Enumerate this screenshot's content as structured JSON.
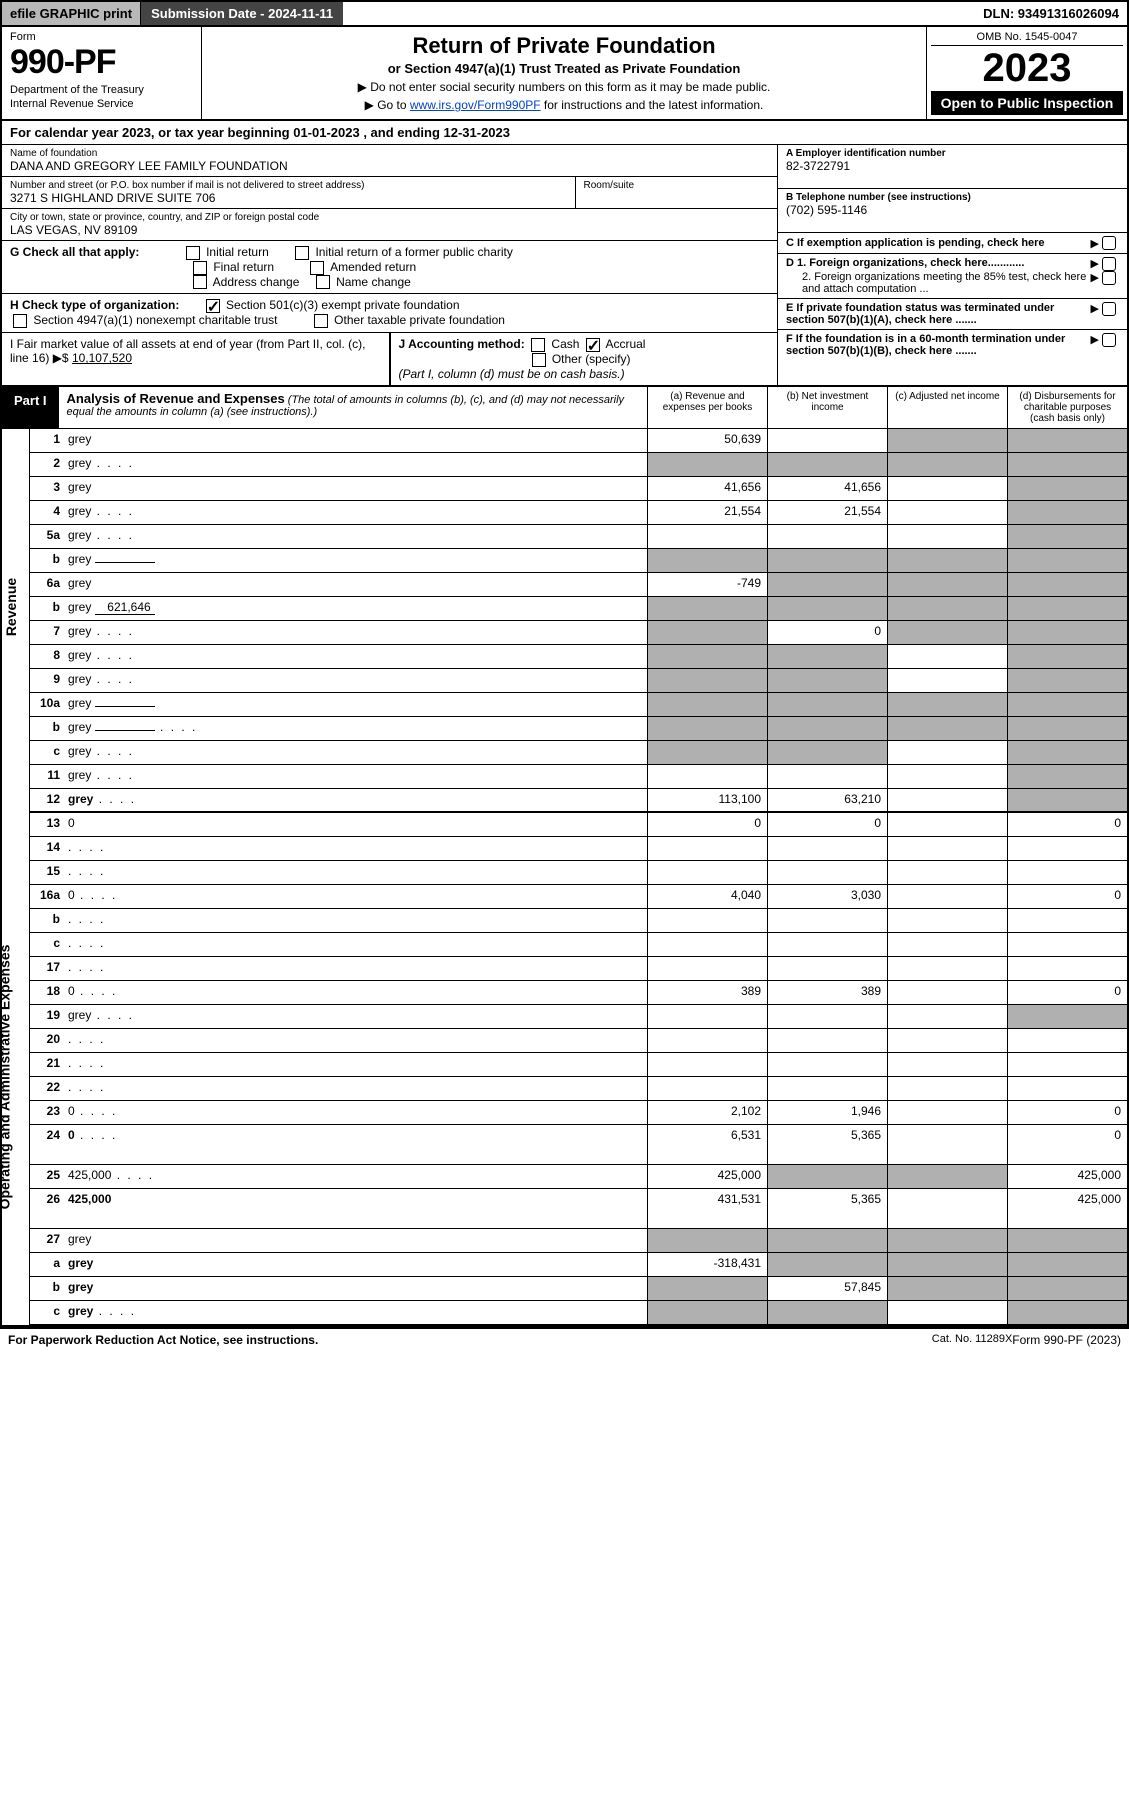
{
  "topbar": {
    "efile": "efile GRAPHIC print",
    "submission": "Submission Date - 2024-11-11",
    "dln": "DLN: 93491316026094"
  },
  "header": {
    "form_label": "Form",
    "form_number": "990-PF",
    "dept1": "Department of the Treasury",
    "dept2": "Internal Revenue Service",
    "title": "Return of Private Foundation",
    "subtitle": "or Section 4947(a)(1) Trust Treated as Private Foundation",
    "inst1": "▶ Do not enter social security numbers on this form as it may be made public.",
    "inst2_pre": "▶ Go to ",
    "inst2_link": "www.irs.gov/Form990PF",
    "inst2_post": " for instructions and the latest information.",
    "omb": "OMB No. 1545-0047",
    "year": "2023",
    "open": "Open to Public Inspection"
  },
  "cal_year": "For calendar year 2023, or tax year beginning 01-01-2023              , and ending 12-31-2023",
  "info": {
    "name_lbl": "Name of foundation",
    "name": "DANA AND GREGORY LEE FAMILY FOUNDATION",
    "addr_lbl": "Number and street (or P.O. box number if mail is not delivered to street address)",
    "addr": "3271 S HIGHLAND DRIVE SUITE 706",
    "room_lbl": "Room/suite",
    "city_lbl": "City or town, state or province, country, and ZIP or foreign postal code",
    "city": "LAS VEGAS, NV  89109",
    "ein_lbl": "A Employer identification number",
    "ein": "82-3722791",
    "phone_lbl": "B Telephone number (see instructions)",
    "phone": "(702) 595-1146",
    "c_lbl": "C If exemption application is pending, check here",
    "d1_lbl": "D 1. Foreign organizations, check here............",
    "d2_lbl": "2. Foreign organizations meeting the 85% test, check here and attach computation ...",
    "e_lbl": "E  If private foundation status was terminated under section 507(b)(1)(A), check here .......",
    "f_lbl": "F  If the foundation is in a 60-month termination under section 507(b)(1)(B), check here .......",
    "g_lbl": "G Check all that apply:",
    "g_opts": [
      "Initial return",
      "Initial return of a former public charity",
      "Final return",
      "Amended return",
      "Address change",
      "Name change"
    ],
    "h_lbl": "H Check type of organization:",
    "h_opt1": "Section 501(c)(3) exempt private foundation",
    "h_opt2": "Section 4947(a)(1) nonexempt charitable trust",
    "h_opt3": "Other taxable private foundation",
    "i_lbl": "I Fair market value of all assets at end of year (from Part II, col. (c), line 16)",
    "i_val": "10,107,520",
    "j_lbl": "J Accounting method:",
    "j_cash": "Cash",
    "j_accrual": "Accrual",
    "j_other": "Other (specify)",
    "j_note": "(Part I, column (d) must be on cash basis.)"
  },
  "part1": {
    "label": "Part I",
    "title": "Analysis of Revenue and Expenses",
    "title_note": "(The total of amounts in columns (b), (c), and (d) may not necessarily equal the amounts in column (a) (see instructions).)",
    "col_a": "(a)   Revenue and expenses per books",
    "col_b": "(b)   Net investment income",
    "col_c": "(c)   Adjusted net income",
    "col_d": "(d)   Disbursements for charitable purposes (cash basis only)"
  },
  "side_labels": {
    "revenue": "Revenue",
    "expenses": "Operating and Administrative Expenses"
  },
  "rows": [
    {
      "n": "1",
      "d": "grey",
      "a": "50,639",
      "b": "",
      "c": "grey"
    },
    {
      "n": "2",
      "d": "grey",
      "a": "grey",
      "b": "grey",
      "c": "grey",
      "dots": true
    },
    {
      "n": "3",
      "d": "grey",
      "a": "41,656",
      "b": "41,656",
      "c": ""
    },
    {
      "n": "4",
      "d": "grey",
      "a": "21,554",
      "b": "21,554",
      "c": "",
      "dots": true
    },
    {
      "n": "5a",
      "d": "grey",
      "a": "",
      "b": "",
      "c": "",
      "dots": true
    },
    {
      "n": "b",
      "d": "grey",
      "a": "grey",
      "b": "grey",
      "c": "grey",
      "inline": ""
    },
    {
      "n": "6a",
      "d": "grey",
      "a": "-749",
      "b": "grey",
      "c": "grey"
    },
    {
      "n": "b",
      "d": "grey",
      "a": "grey",
      "b": "grey",
      "c": "grey",
      "inline": "621,646"
    },
    {
      "n": "7",
      "d": "grey",
      "a": "grey",
      "b": "0",
      "c": "grey",
      "dots": true
    },
    {
      "n": "8",
      "d": "grey",
      "a": "grey",
      "b": "grey",
      "c": "",
      "dots": true
    },
    {
      "n": "9",
      "d": "grey",
      "a": "grey",
      "b": "grey",
      "c": "",
      "dots": true
    },
    {
      "n": "10a",
      "d": "grey",
      "a": "grey",
      "b": "grey",
      "c": "grey",
      "inline": ""
    },
    {
      "n": "b",
      "d": "grey",
      "a": "grey",
      "b": "grey",
      "c": "grey",
      "inline": "",
      "dots": true
    },
    {
      "n": "c",
      "d": "grey",
      "a": "grey",
      "b": "grey",
      "c": "",
      "dots": true
    },
    {
      "n": "11",
      "d": "grey",
      "a": "",
      "b": "",
      "c": "",
      "dots": true
    },
    {
      "n": "12",
      "d": "grey",
      "a": "113,100",
      "b": "63,210",
      "c": "",
      "bold": true,
      "dots": true
    },
    {
      "n": "13",
      "d": "0",
      "a": "0",
      "b": "0",
      "c": ""
    },
    {
      "n": "14",
      "d": "",
      "a": "",
      "b": "",
      "c": "",
      "dots": true
    },
    {
      "n": "15",
      "d": "",
      "a": "",
      "b": "",
      "c": "",
      "dots": true
    },
    {
      "n": "16a",
      "d": "0",
      "a": "4,040",
      "b": "3,030",
      "c": "",
      "dots": true
    },
    {
      "n": "b",
      "d": "",
      "a": "",
      "b": "",
      "c": "",
      "dots": true
    },
    {
      "n": "c",
      "d": "",
      "a": "",
      "b": "",
      "c": "",
      "dots": true
    },
    {
      "n": "17",
      "d": "",
      "a": "",
      "b": "",
      "c": "",
      "dots": true
    },
    {
      "n": "18",
      "d": "0",
      "a": "389",
      "b": "389",
      "c": "",
      "dots": true
    },
    {
      "n": "19",
      "d": "grey",
      "a": "",
      "b": "",
      "c": "",
      "dots": true
    },
    {
      "n": "20",
      "d": "",
      "a": "",
      "b": "",
      "c": "",
      "dots": true
    },
    {
      "n": "21",
      "d": "",
      "a": "",
      "b": "",
      "c": "",
      "dots": true
    },
    {
      "n": "22",
      "d": "",
      "a": "",
      "b": "",
      "c": "",
      "dots": true
    },
    {
      "n": "23",
      "d": "0",
      "a": "2,102",
      "b": "1,946",
      "c": "",
      "dots": true
    },
    {
      "n": "24",
      "d": "0",
      "a": "6,531",
      "b": "5,365",
      "c": "",
      "bold": true,
      "dots": true,
      "tall": true
    },
    {
      "n": "25",
      "d": "425,000",
      "a": "425,000",
      "b": "grey",
      "c": "grey",
      "dots": true
    },
    {
      "n": "26",
      "d": "425,000",
      "a": "431,531",
      "b": "5,365",
      "c": "",
      "bold": true,
      "tall": true
    },
    {
      "n": "27",
      "d": "grey",
      "a": "grey",
      "b": "grey",
      "c": "grey"
    },
    {
      "n": "a",
      "d": "grey",
      "a": "-318,431",
      "b": "grey",
      "c": "grey",
      "bold": true
    },
    {
      "n": "b",
      "d": "grey",
      "a": "grey",
      "b": "57,845",
      "c": "grey",
      "bold": true
    },
    {
      "n": "c",
      "d": "grey",
      "a": "grey",
      "b": "grey",
      "c": "",
      "bold": true,
      "dots": true
    }
  ],
  "revenue_split": 16,
  "footer": {
    "left": "For Paperwork Reduction Act Notice, see instructions.",
    "mid": "Cat. No. 11289X",
    "right": "Form 990-PF (2023)"
  },
  "colors": {
    "grey_cell": "#b0b0b0",
    "black": "#000000",
    "link": "#0044cc"
  }
}
